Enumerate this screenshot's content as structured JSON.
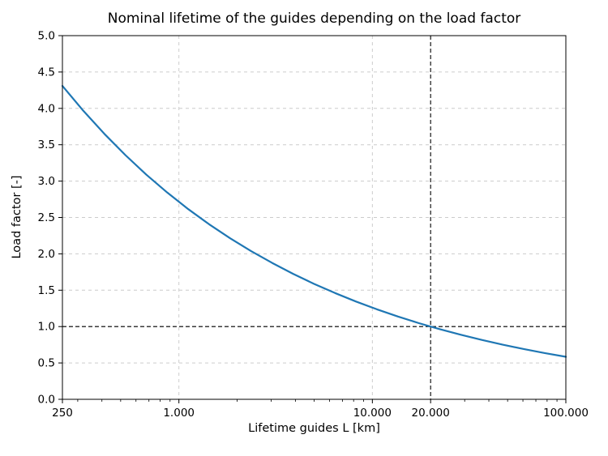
{
  "figure": {
    "background": "#ffffff"
  },
  "chart_data": {
    "type": "line",
    "title": "Nominal lifetime of the guides depending on the load factor",
    "xlabel": "Lifetime guides L [km]",
    "ylabel": "Load factor [-]",
    "x_scale": "log",
    "xlim": [
      250,
      100000
    ],
    "ylim": [
      0.0,
      5.0
    ],
    "grid": {
      "on": true,
      "style": "dashed",
      "color": "#cccccc",
      "x_values": [
        1000,
        10000,
        100000
      ],
      "y_values": [
        0.5,
        1.0,
        1.5,
        2.0,
        2.5,
        3.0,
        3.5,
        4.0,
        4.5
      ]
    },
    "x_ticks": [
      {
        "value": 250,
        "label": "250"
      },
      {
        "value": 1000,
        "label": "1.000"
      },
      {
        "value": 10000,
        "label": "10.000"
      },
      {
        "value": 20000,
        "label": "20.000"
      },
      {
        "value": 100000,
        "label": "100.000"
      }
    ],
    "x_minor_ticks": [
      300,
      400,
      500,
      600,
      700,
      800,
      900,
      2000,
      3000,
      4000,
      5000,
      6000,
      7000,
      8000,
      9000,
      30000,
      40000,
      50000,
      60000,
      70000,
      80000,
      90000
    ],
    "y_ticks": [
      {
        "value": 0.0,
        "label": "0.0"
      },
      {
        "value": 0.5,
        "label": "0.5"
      },
      {
        "value": 1.0,
        "label": "1.0"
      },
      {
        "value": 1.5,
        "label": "1.5"
      },
      {
        "value": 2.0,
        "label": "2.0"
      },
      {
        "value": 2.5,
        "label": "2.5"
      },
      {
        "value": 3.0,
        "label": "3.0"
      },
      {
        "value": 3.5,
        "label": "3.5"
      },
      {
        "value": 4.0,
        "label": "4.0"
      },
      {
        "value": 4.5,
        "label": "4.5"
      },
      {
        "value": 5.0,
        "label": "5.0"
      }
    ],
    "reference_lines": {
      "vertical_x": 20000,
      "horizontal_y": 1.0,
      "color": "#000000",
      "style": "dashed",
      "intersection": {
        "x": 20000,
        "y": 1.0
      }
    },
    "series": [
      {
        "name": "load-factor-curve",
        "color": "#1f77b4",
        "relation": "y = (20000 / x)^(1/3)",
        "x": [
          250,
          321,
          412,
          529,
          678,
          871,
          1118,
          1434,
          1841,
          2363,
          3033,
          3893,
          4997,
          6414,
          8232,
          10565,
          13561,
          17404,
          20000,
          22338,
          28670,
          36797,
          47228,
          60616,
          77799,
          100000
        ],
        "y": [
          4.309,
          3.965,
          3.649,
          3.357,
          3.089,
          2.842,
          2.615,
          2.406,
          2.214,
          2.037,
          1.875,
          1.725,
          1.587,
          1.461,
          1.344,
          1.237,
          1.138,
          1.047,
          1.0,
          0.964,
          0.887,
          0.816,
          0.751,
          0.691,
          0.636,
          0.585
        ]
      }
    ]
  }
}
